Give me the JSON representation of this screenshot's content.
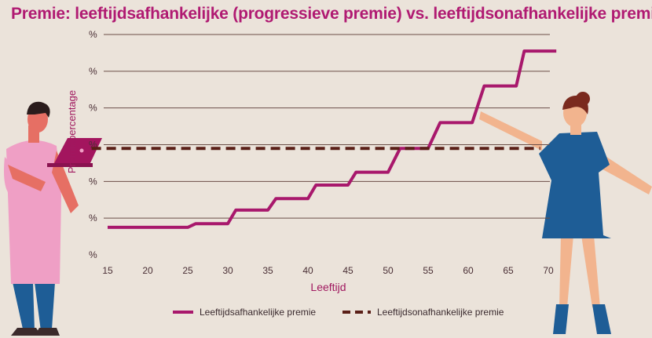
{
  "title": "Premie: leeftijdsafhankelijke (progressieve premie) vs. leeftijdsonafhankelijke premie",
  "colors": {
    "background": "#ebe3da",
    "title": "#b01a72",
    "series_progressive": "#a8186c",
    "series_flat": "#5a1f17",
    "grid": "#6b4e47"
  },
  "chart_data": {
    "type": "line",
    "xlabel": "Leeftijd",
    "ylabel": "Premiepercentage",
    "x_ticks": [
      15,
      20,
      25,
      30,
      35,
      40,
      45,
      50,
      55,
      60,
      65,
      70
    ],
    "y_tick_labels": [
      "%",
      "%",
      "%",
      "%",
      "%",
      "%",
      "%"
    ],
    "xlim": [
      15,
      70
    ],
    "ylim": [
      0,
      6
    ],
    "grid": "horizontal",
    "legend_position": "bottom",
    "series": [
      {
        "name": "Leeftijdsafhankelijke premie",
        "style": "solid",
        "points": [
          [
            15,
            0.75
          ],
          [
            25,
            0.75
          ],
          [
            26,
            0.85
          ],
          [
            30,
            0.85
          ],
          [
            31,
            1.22
          ],
          [
            35,
            1.22
          ],
          [
            36,
            1.53
          ],
          [
            40,
            1.53
          ],
          [
            41,
            1.9
          ],
          [
            45,
            1.9
          ],
          [
            46,
            2.25
          ],
          [
            50,
            2.25
          ],
          [
            51.5,
            2.9
          ],
          [
            55,
            2.9
          ],
          [
            56.5,
            3.6
          ],
          [
            60.5,
            3.6
          ],
          [
            62,
            4.6
          ],
          [
            66,
            4.6
          ],
          [
            67,
            5.55
          ],
          [
            71,
            5.55
          ]
        ]
      },
      {
        "name": "Leeftijdsonafhankelijke premie",
        "style": "dashed",
        "points": [
          [
            13,
            2.9
          ],
          [
            69,
            2.9
          ]
        ]
      }
    ]
  }
}
